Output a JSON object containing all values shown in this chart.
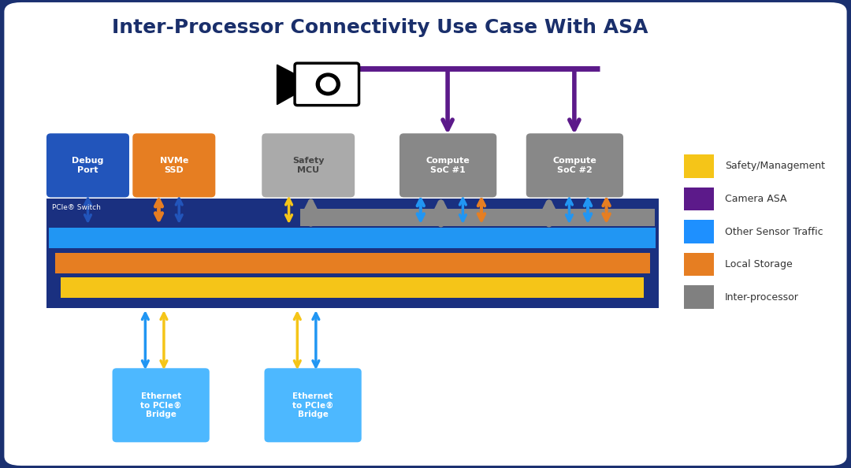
{
  "title": "Inter-Processor Connectivity Use Case With ASA",
  "title_color": "#1a2f6b",
  "bg_outer": "#1a3070",
  "bg_inner": "#ffffff",
  "colors": {
    "yellow": "#f5c518",
    "purple": "#5c1a8a",
    "blue": "#1e90ff",
    "orange": "#e67e22",
    "gray": "#808080",
    "dark_blue": "#1a3080",
    "mid_blue": "#2255bb",
    "light_blue": "#4db8ff",
    "debug_port": "#2255bb",
    "nvme_ssd": "#e67e22",
    "safety_mcu": "#aaaaaa",
    "compute_soc": "#888888",
    "eth_bridge": "#4db8ff"
  },
  "legend_items": [
    {
      "color": "#f5c518",
      "label": "Safety/Management"
    },
    {
      "color": "#5c1a8a",
      "label": "Camera ASA"
    },
    {
      "color": "#1e90ff",
      "label": "Other Sensor Traffic"
    },
    {
      "color": "#e67e22",
      "label": "Local Storage"
    },
    {
      "color": "#808080",
      "label": "Inter-processor"
    }
  ]
}
